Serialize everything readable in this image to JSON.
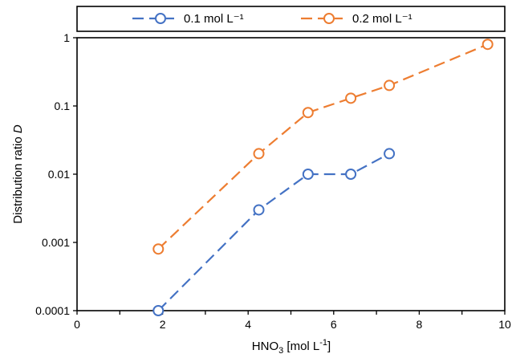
{
  "chart_data": {
    "type": "line",
    "xlabel": {
      "main": "HNO",
      "sub": "3",
      "unit_prefix": " [mol L",
      "unit_sup": "-1",
      "unit_suffix": "]"
    },
    "ylabel": {
      "prefix": "Distribution ratio ",
      "italic": "D"
    },
    "xlim": [
      0,
      10
    ],
    "ylim": [
      0.0001,
      1
    ],
    "yscale": "log",
    "x_ticks": [
      0,
      2,
      4,
      6,
      8,
      10
    ],
    "x_tick_labels": [
      "0",
      "2",
      "4",
      "6",
      "8",
      "10"
    ],
    "y_ticks": [
      0.0001,
      0.001,
      0.01,
      0.1,
      1
    ],
    "y_tick_labels": [
      "0.0001",
      "0.001",
      "0.01",
      "0.1",
      "1"
    ],
    "grid": false,
    "legend_position": "top",
    "series": [
      {
        "name": "0.1 mol L⁻¹",
        "color": "#4472C4",
        "x": [
          1.9,
          4.25,
          5.4,
          6.4,
          7.3
        ],
        "y": [
          0.0001,
          0.003,
          0.01,
          0.01,
          0.02
        ]
      },
      {
        "name": "0.2 mol L⁻¹",
        "color": "#ED7D31",
        "x": [
          1.9,
          4.25,
          5.4,
          6.4,
          7.3,
          9.6
        ],
        "y": [
          0.0008,
          0.02,
          0.08,
          0.13,
          0.2,
          0.8
        ]
      }
    ]
  }
}
